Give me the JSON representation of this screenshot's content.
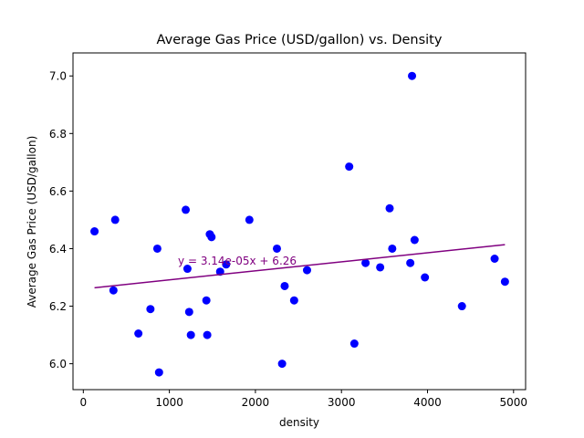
{
  "chart_data": {
    "type": "scatter",
    "title": "Average Gas Price (USD/gallon) vs. Density",
    "xlabel": "density",
    "ylabel": "Average Gas Price (USD/gallon)",
    "xlim": [
      -120,
      5140
    ],
    "ylim": [
      5.91,
      7.08
    ],
    "xticks": [
      0,
      1000,
      2000,
      3000,
      4000,
      5000
    ],
    "xtick_labels": [
      "0",
      "1000",
      "2000",
      "3000",
      "4000",
      "5000"
    ],
    "yticks": [
      6.0,
      6.2,
      6.4,
      6.6,
      6.8,
      7.0
    ],
    "ytick_labels": [
      "6.0",
      "6.2",
      "6.4",
      "6.6",
      "6.8",
      "7.0"
    ],
    "grid": false,
    "series": [
      {
        "kind": "points",
        "color": "#0000ff",
        "points": [
          [
            130,
            6.46
          ],
          [
            370,
            6.5
          ],
          [
            350,
            6.255
          ],
          [
            640,
            6.105
          ],
          [
            780,
            6.19
          ],
          [
            860,
            6.4
          ],
          [
            880,
            5.97
          ],
          [
            1190,
            6.535
          ],
          [
            1210,
            6.33
          ],
          [
            1230,
            6.18
          ],
          [
            1250,
            6.1
          ],
          [
            1430,
            6.22
          ],
          [
            1440,
            6.1
          ],
          [
            1470,
            6.45
          ],
          [
            1490,
            6.44
          ],
          [
            1590,
            6.32
          ],
          [
            1660,
            6.345
          ],
          [
            1930,
            6.5
          ],
          [
            2250,
            6.4
          ],
          [
            2310,
            6.0
          ],
          [
            2340,
            6.27
          ],
          [
            2450,
            6.22
          ],
          [
            2600,
            6.325
          ],
          [
            3090,
            6.685
          ],
          [
            3150,
            6.07
          ],
          [
            3280,
            6.35
          ],
          [
            3450,
            6.335
          ],
          [
            3560,
            6.54
          ],
          [
            3590,
            6.4
          ],
          [
            3800,
            6.35
          ],
          [
            3820,
            7.0
          ],
          [
            3850,
            6.43
          ],
          [
            3970,
            6.3
          ],
          [
            4400,
            6.2
          ],
          [
            4780,
            6.365
          ],
          [
            4900,
            6.285
          ]
        ]
      },
      {
        "kind": "trendline",
        "color": "#800080",
        "slope": 3.14e-05,
        "intercept": 6.26,
        "x_range": [
          130,
          4900
        ]
      }
    ],
    "annotations": [
      {
        "text": "y = 3.14e-05x + 6.26",
        "x": 1100,
        "y": 6.345,
        "color": "#800080"
      }
    ]
  }
}
